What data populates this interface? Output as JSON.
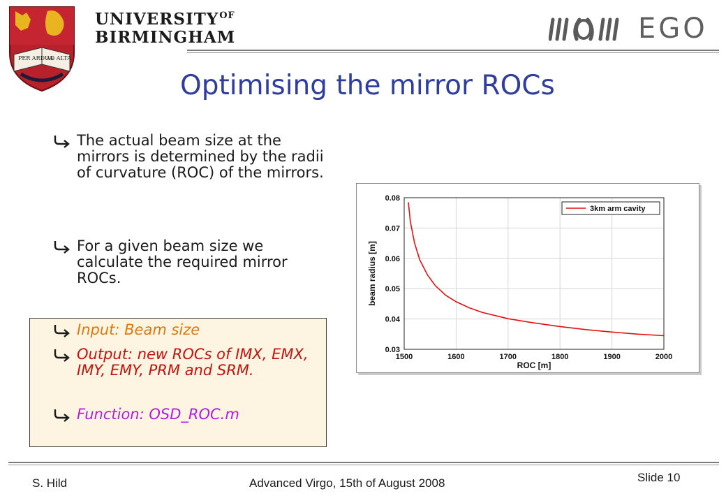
{
  "header": {
    "university_line1": "UNIVERSITY",
    "university_of": "OF",
    "university_line2": "BIRMINGHAM",
    "crest_motto_left": "PER ARDUA",
    "crest_motto_right": "AD ALTA",
    "ego_label": "EGO"
  },
  "title": "Optimising the mirror ROCs",
  "bullets": [
    "The actual beam size at the mirrors is determined by the radii of curvature (ROC) of the mirrors.",
    "For a given beam size we calculate the required mirror ROCs."
  ],
  "io_box": {
    "input": "Input: Beam size",
    "output": "Output: new ROCs of IMX, EMX, IMY, EMY, PRM and SRM.",
    "function": "Function: OSD_ROC.m",
    "colors": {
      "input": "#d87b10",
      "output": "#c0140f",
      "function": "#b31ce0",
      "background": "#fdf5e2"
    }
  },
  "footer": {
    "author": "S. Hild",
    "event": "Advanced Virgo, 15th of August 2008",
    "slide": "Slide 10"
  },
  "colors": {
    "title": "#2f3e9e",
    "curve": "#e21010",
    "bullet_arrow": "#1a1a1a"
  },
  "icons": {
    "bullet": "arrow-bullet-icon"
  },
  "chart_data": {
    "type": "line",
    "title": "",
    "xlabel": "ROC [m]",
    "ylabel": "beam radius [m]",
    "xlim": [
      1500,
      2000
    ],
    "ylim": [
      0.03,
      0.08
    ],
    "xticks": [
      1500,
      1600,
      1700,
      1800,
      1900,
      2000
    ],
    "yticks": [
      0.03,
      0.04,
      0.05,
      0.06,
      0.07,
      0.08
    ],
    "grid": true,
    "legend": "top-right",
    "series": [
      {
        "name": "3km arm cavity",
        "x": [
          1508,
          1512,
          1520,
          1530,
          1545,
          1560,
          1580,
          1600,
          1625,
          1650,
          1700,
          1750,
          1800,
          1850,
          1900,
          1950,
          2000
        ],
        "y": [
          0.0785,
          0.072,
          0.065,
          0.0595,
          0.0545,
          0.051,
          0.0478,
          0.0457,
          0.0437,
          0.0422,
          0.0401,
          0.0387,
          0.0375,
          0.0365,
          0.0357,
          0.035,
          0.0345
        ]
      }
    ]
  }
}
